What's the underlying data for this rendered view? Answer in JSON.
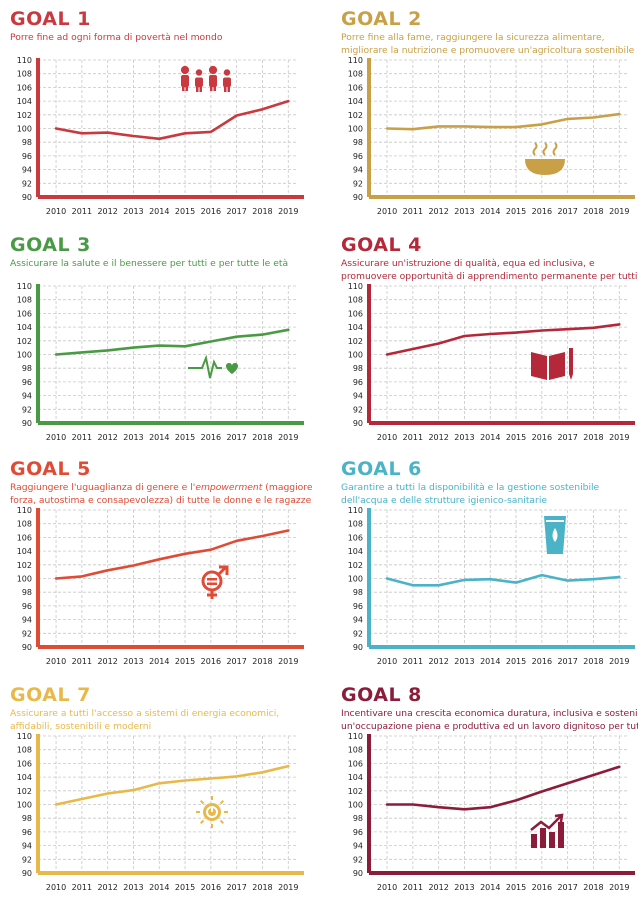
{
  "goals": [
    {
      "title": "GOAL 1",
      "subtitle_1": "Porre fine ad ogni forma di povertà nel mondo",
      "subtitle_2": "",
      "color": "#c9393f",
      "icon": "family-icon"
    },
    {
      "title": "GOAL 2",
      "subtitle_1": "Porre fine alla fame, raggiungere la sicurezza alimentare,",
      "subtitle_2": "migliorare la nutrizione e promuovere un'agricoltura sostenibile",
      "color": "#c9a046",
      "icon": "food-bowl-icon"
    },
    {
      "title": "GOAL 3",
      "subtitle_1": "Assicurare la salute e il benessere per tutti e per tutte le età",
      "subtitle_2": "",
      "color": "#4a9a45",
      "icon": "heartbeat-icon"
    },
    {
      "title": "GOAL 4",
      "subtitle_1": "Assicurare un'istruzione di qualità, equa ed inclusiva, e",
      "subtitle_2": "promuovere opportunità di apprendimento permanente per tutti",
      "color": "#b5283a",
      "icon": "book-pencil-icon"
    },
    {
      "title": "GOAL 5",
      "subtitle_1": "Raggiungere l'uguaglianza di genere e l'",
      "subtitle_1_em": "empowerment",
      "subtitle_1_tail": " (maggiore",
      "subtitle_2": "forza, autostima e consapevolezza) di tutte le donne e le ragazze",
      "color": "#e04b36",
      "icon": "gender-equality-icon"
    },
    {
      "title": "GOAL 6",
      "subtitle_1": "Garantire a tutti la disponibilità e la gestione sostenibile",
      "subtitle_2": "dell'acqua e delle strutture igienico-sanitarie",
      "color": "#4ab3c8",
      "icon": "water-glass-icon"
    },
    {
      "title": "GOAL 7",
      "subtitle_1": "Assicurare a tutti l'accesso a sistemi di energia economici,",
      "subtitle_2": "affidabili, sostenibili e moderni",
      "color": "#e8b94a",
      "icon": "sun-power-icon"
    },
    {
      "title": "GOAL 8",
      "subtitle_1": "Incentivare una crescita economica duratura, inclusiva e sostenibile,",
      "subtitle_2": "un'occupazione piena e produttiva ed un lavoro dignitoso per tutti",
      "color": "#8c1d3a",
      "icon": "growth-chart-icon"
    }
  ],
  "chart_data": [
    {
      "type": "line",
      "title": "GOAL 1",
      "x": [
        2010,
        2011,
        2012,
        2013,
        2014,
        2015,
        2016,
        2017,
        2018,
        2019
      ],
      "series": [
        {
          "values": [
            100.0,
            99.3,
            99.4,
            98.9,
            98.5,
            99.3,
            99.5,
            101.9,
            102.8,
            104.0
          ]
        }
      ],
      "ylim": [
        90,
        110
      ],
      "yticks": [
        90,
        92,
        94,
        96,
        98,
        100,
        102,
        104,
        106,
        108,
        110
      ],
      "grid": true
    },
    {
      "type": "line",
      "title": "GOAL 2",
      "x": [
        2010,
        2011,
        2012,
        2013,
        2014,
        2015,
        2016,
        2017,
        2018,
        2019
      ],
      "series": [
        {
          "values": [
            100.0,
            99.9,
            100.3,
            100.3,
            100.2,
            100.2,
            100.6,
            101.4,
            101.6,
            102.1
          ]
        }
      ],
      "ylim": [
        90,
        110
      ],
      "yticks": [
        90,
        92,
        94,
        96,
        98,
        100,
        102,
        104,
        106,
        108,
        110
      ],
      "grid": true
    },
    {
      "type": "line",
      "title": "GOAL 3",
      "x": [
        2010,
        2011,
        2012,
        2013,
        2014,
        2015,
        2016,
        2017,
        2018,
        2019
      ],
      "series": [
        {
          "values": [
            100.0,
            100.3,
            100.6,
            101.0,
            101.3,
            101.2,
            101.9,
            102.6,
            102.9,
            103.6
          ]
        }
      ],
      "ylim": [
        90,
        110
      ],
      "yticks": [
        90,
        92,
        94,
        96,
        98,
        100,
        102,
        104,
        106,
        108,
        110
      ],
      "grid": true
    },
    {
      "type": "line",
      "title": "GOAL 4",
      "x": [
        2010,
        2011,
        2012,
        2013,
        2014,
        2015,
        2016,
        2017,
        2018,
        2019
      ],
      "series": [
        {
          "values": [
            100.0,
            100.8,
            101.6,
            102.7,
            103.0,
            103.2,
            103.5,
            103.7,
            103.9,
            104.4
          ]
        }
      ],
      "ylim": [
        90,
        110
      ],
      "yticks": [
        90,
        92,
        94,
        96,
        98,
        100,
        102,
        104,
        106,
        108,
        110
      ],
      "grid": true
    },
    {
      "type": "line",
      "title": "GOAL 5",
      "x": [
        2010,
        2011,
        2012,
        2013,
        2014,
        2015,
        2016,
        2017,
        2018,
        2019
      ],
      "series": [
        {
          "values": [
            100.0,
            100.3,
            101.2,
            101.9,
            102.8,
            103.6,
            104.2,
            105.5,
            106.2,
            107.0
          ]
        }
      ],
      "ylim": [
        90,
        110
      ],
      "yticks": [
        90,
        92,
        94,
        96,
        98,
        100,
        102,
        104,
        106,
        108,
        110
      ],
      "grid": true
    },
    {
      "type": "line",
      "title": "GOAL 6",
      "x": [
        2010,
        2011,
        2012,
        2013,
        2014,
        2015,
        2016,
        2017,
        2018,
        2019
      ],
      "series": [
        {
          "values": [
            100.0,
            99.0,
            99.0,
            99.8,
            99.9,
            99.4,
            100.5,
            99.7,
            99.9,
            100.2
          ]
        }
      ],
      "ylim": [
        90,
        110
      ],
      "yticks": [
        90,
        92,
        94,
        96,
        98,
        100,
        102,
        104,
        106,
        108,
        110
      ],
      "grid": true
    },
    {
      "type": "line",
      "title": "GOAL 7",
      "x": [
        2010,
        2011,
        2012,
        2013,
        2014,
        2015,
        2016,
        2017,
        2018,
        2019
      ],
      "series": [
        {
          "values": [
            100.0,
            100.8,
            101.6,
            102.1,
            103.1,
            103.5,
            103.8,
            104.1,
            104.7,
            105.6
          ]
        }
      ],
      "ylim": [
        90,
        110
      ],
      "yticks": [
        90,
        92,
        94,
        96,
        98,
        100,
        102,
        104,
        106,
        108,
        110
      ],
      "grid": true
    },
    {
      "type": "line",
      "title": "GOAL 8",
      "x": [
        2010,
        2011,
        2012,
        2013,
        2014,
        2015,
        2016,
        2017,
        2018,
        2019
      ],
      "series": [
        {
          "values": [
            100.0,
            100.0,
            99.6,
            99.3,
            99.6,
            100.6,
            101.9,
            103.1,
            104.3,
            105.5
          ]
        }
      ],
      "ylim": [
        90,
        110
      ],
      "yticks": [
        90,
        92,
        94,
        96,
        98,
        100,
        102,
        104,
        106,
        108,
        110
      ],
      "grid": true
    }
  ]
}
